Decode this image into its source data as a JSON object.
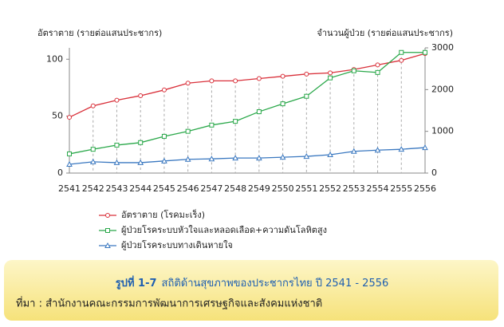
{
  "chart_data": {
    "type": "line",
    "y_label": "อัตราตาย (รายต่อแสนประชากร)",
    "y2_label": "จำนวนผู้ป่วย (รายต่อแสนประชากร)",
    "categories": [
      "2541",
      "2542",
      "2543",
      "2544",
      "2545",
      "2546",
      "2547",
      "2548",
      "2549",
      "2550",
      "2551",
      "2552",
      "2553",
      "2554",
      "2555",
      "2556"
    ],
    "ylim": [
      0,
      110
    ],
    "yticks": [
      0,
      50,
      100
    ],
    "y2lim": [
      0,
      3000
    ],
    "y2ticks": [
      0,
      1000,
      2000,
      3000
    ],
    "series": [
      {
        "name": "อัตราตาย (โรคมะเร็ง)",
        "color": "#d9303a",
        "marker": "circle",
        "values": [
          49,
          59,
          64,
          68,
          73,
          79,
          81,
          81,
          83,
          85,
          87,
          88,
          91,
          95,
          99,
          105
        ]
      },
      {
        "name": "ผู้ป่วยโรคระบบหัวใจและหลอดเลือด+ความดันโลหิตสูง",
        "color": "#2aa84a",
        "marker": "square",
        "axis": "y2",
        "values": [
          460,
          570,
          670,
          730,
          880,
          1000,
          1150,
          1240,
          1470,
          1660,
          1840,
          2280,
          2450,
          2410,
          2890,
          2890
        ]
      },
      {
        "name": "ผู้ป่วยโรคระบบทางเดินหายใจ",
        "color": "#3a78c0",
        "marker": "triangle",
        "axis": "y2",
        "values": [
          210,
          270,
          250,
          250,
          290,
          330,
          340,
          360,
          360,
          380,
          400,
          440,
          520,
          550,
          570,
          610
        ]
      }
    ]
  },
  "caption": {
    "figure_label": "รูปที่ 1-7",
    "figure_title": "สถิติด้านสุขภาพของประชากรไทย ปี 2541 - 2556",
    "source": "ที่มา : สำนักงานคณะกรรมการพัฒนาการเศรษฐกิจและสังคมแห่งชาติ"
  }
}
